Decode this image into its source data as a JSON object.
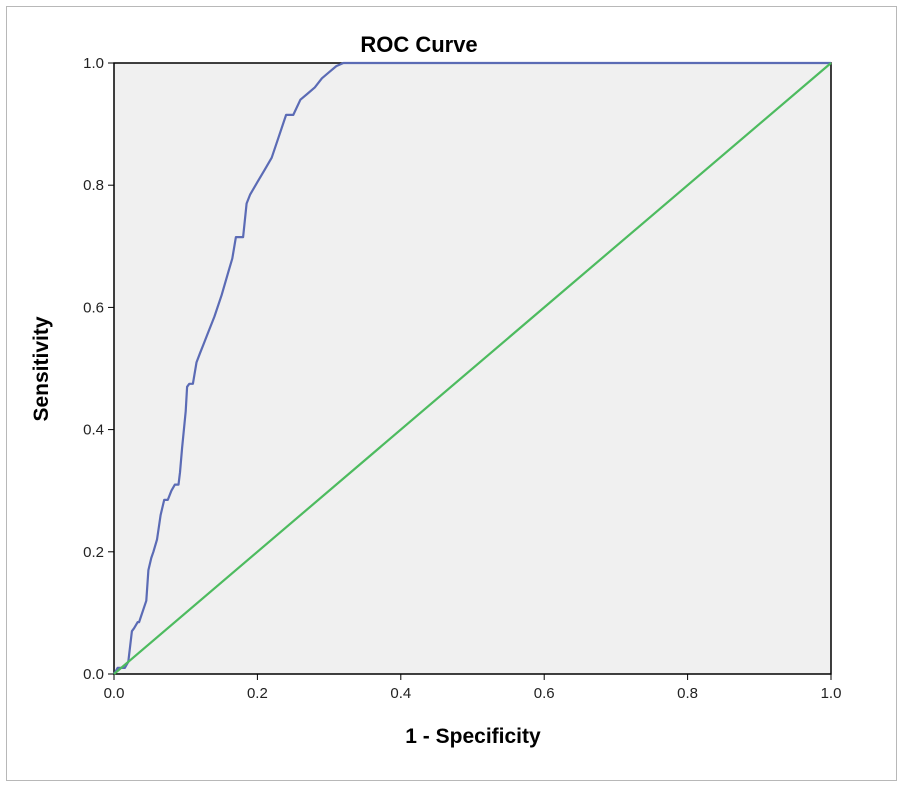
{
  "chart_data": {
    "type": "line",
    "title": "ROC Curve",
    "xlabel": "1 - Specificity",
    "ylabel": "Sensitivity",
    "xlim": [
      0.0,
      1.0
    ],
    "ylim": [
      0.0,
      1.0
    ],
    "x_ticks": [
      "0.0",
      "0.2",
      "0.4",
      "0.6",
      "0.8",
      "1.0"
    ],
    "y_ticks": [
      "0.0",
      "0.2",
      "0.4",
      "0.6",
      "0.8",
      "1.0"
    ],
    "grid": false,
    "plot_background": "#f0f0f0",
    "series": [
      {
        "color": "#5b6bb5",
        "x": [
          0.0,
          0.005,
          0.015,
          0.02,
          0.025,
          0.028,
          0.033,
          0.035,
          0.045,
          0.048,
          0.052,
          0.055,
          0.06,
          0.065,
          0.07,
          0.075,
          0.08,
          0.085,
          0.09,
          0.092,
          0.095,
          0.1,
          0.102,
          0.105,
          0.11,
          0.115,
          0.12,
          0.125,
          0.13,
          0.14,
          0.15,
          0.16,
          0.165,
          0.17,
          0.175,
          0.18,
          0.185,
          0.19,
          0.2,
          0.21,
          0.22,
          0.23,
          0.24,
          0.25,
          0.26,
          0.27,
          0.28,
          0.29,
          0.3,
          0.31,
          0.32,
          1.0
        ],
        "y": [
          0.0,
          0.01,
          0.01,
          0.02,
          0.07,
          0.075,
          0.085,
          0.085,
          0.12,
          0.17,
          0.19,
          0.2,
          0.22,
          0.26,
          0.285,
          0.285,
          0.3,
          0.31,
          0.31,
          0.33,
          0.37,
          0.43,
          0.47,
          0.475,
          0.475,
          0.51,
          0.525,
          0.54,
          0.555,
          0.585,
          0.62,
          0.66,
          0.68,
          0.715,
          0.715,
          0.715,
          0.77,
          0.785,
          0.805,
          0.825,
          0.845,
          0.88,
          0.915,
          0.915,
          0.94,
          0.95,
          0.96,
          0.975,
          0.985,
          0.995,
          1.0,
          1.0
        ]
      },
      {
        "color": "#4dbb5f",
        "x": [
          0.0,
          1.0
        ],
        "y": [
          0.0,
          1.0
        ]
      }
    ]
  }
}
